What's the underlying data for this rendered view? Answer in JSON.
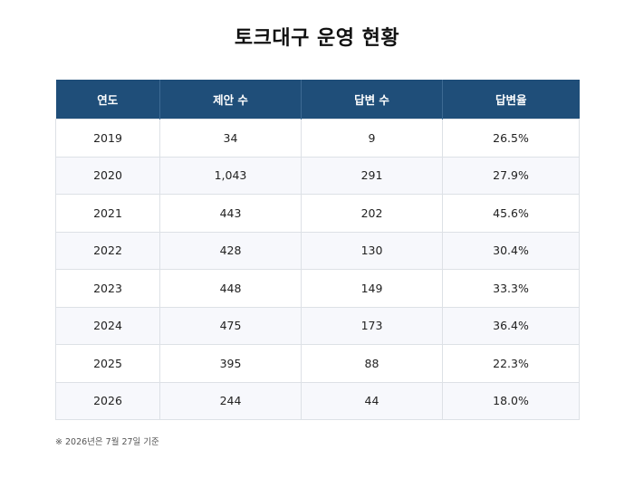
{
  "title": "토크대구 운영 현황",
  "table": {
    "headers": [
      "연도",
      "제안 수",
      "답변 수",
      "답변율"
    ],
    "rows": [
      [
        "2019",
        "34",
        "9",
        "26.5%"
      ],
      [
        "2020",
        "1,043",
        "291",
        "27.9%"
      ],
      [
        "2021",
        "443",
        "202",
        "45.6%"
      ],
      [
        "2022",
        "428",
        "130",
        "30.4%"
      ],
      [
        "2023",
        "448",
        "149",
        "33.3%"
      ],
      [
        "2024",
        "475",
        "173",
        "36.4%"
      ],
      [
        "2025",
        "395",
        "88",
        "22.3%"
      ],
      [
        "2026",
        "244",
        "44",
        "18.0%"
      ]
    ]
  },
  "note": "※ 2026년은 7월 27일 기준",
  "colors": {
    "header_bg": "#1f4e79",
    "header_text": "#ffffff",
    "stripe": "#f7f8fc",
    "border": "#dde1e6"
  }
}
